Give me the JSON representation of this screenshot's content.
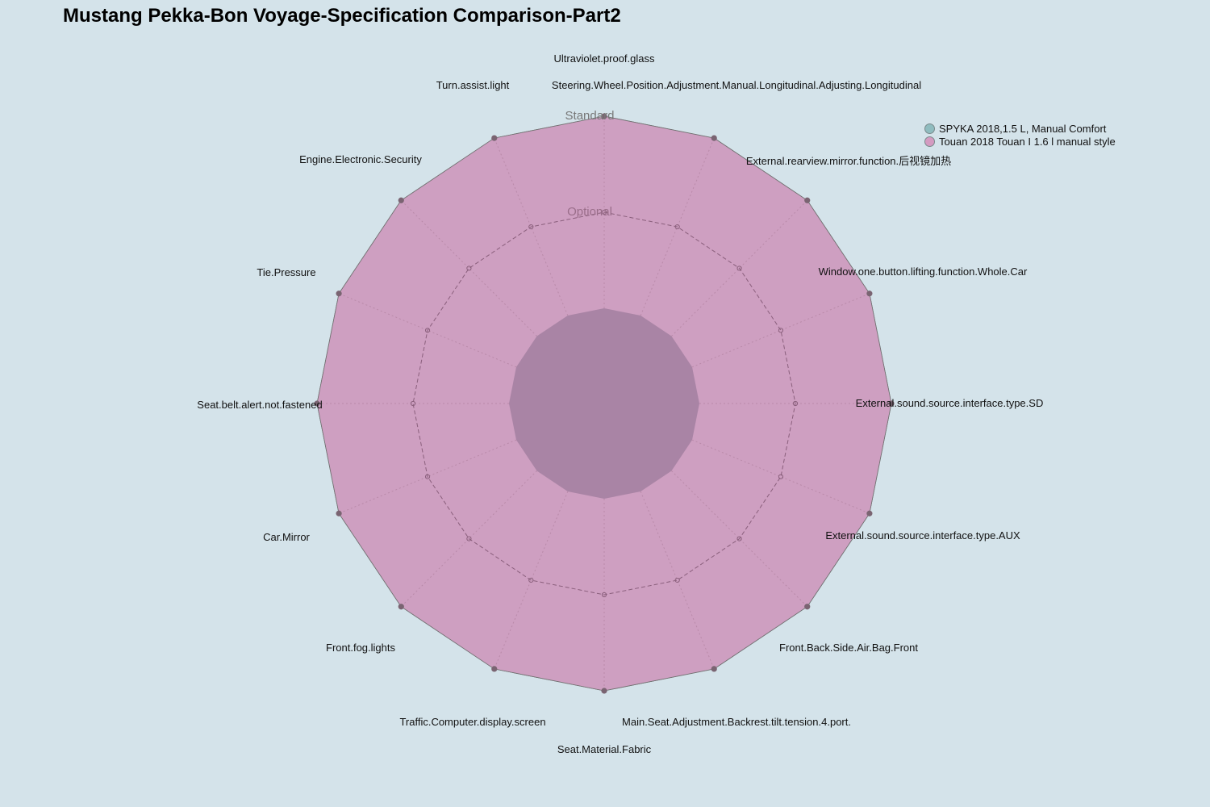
{
  "chart_data": {
    "type": "radar",
    "title": "Mustang Pekka-Bon Voyage-Specification Comparison-Part2",
    "levels": [
      "",
      "Optional",
      "Standard"
    ],
    "axes": [
      "Ultraviolet.proof.glass",
      "Steering.Wheel.Position.Adjustment.Manual.Longitudinal.Adjusting.Longitudinal",
      "External.rearview.mirror.function.后视镜加热",
      "Window.one.button.lifting.function.Whole.Car",
      "External.sound.source.interface.type.SD",
      "External.sound.source.interface.type.AUX",
      "Front.Back.Side.Air.Bag.Front",
      "Main.Seat.Adjustment.Backrest.tilt.tension.4.port.",
      "Seat.Material.Fabric",
      "Traffic.Computer.display.screen",
      "Front.fog.lights",
      "Car.Mirror",
      "Seat.belt.alert.not.fastened",
      "Tie.Pressure",
      "Engine.Electronic.Security",
      "Turn.assist.light"
    ],
    "series": [
      {
        "name": "SPYKA 2018,1.5 L, Manual Comfort",
        "color": "#8fbcbf",
        "values": [
          2,
          2,
          2,
          2,
          2,
          2,
          2,
          2,
          2,
          2,
          2,
          2,
          2,
          2,
          2,
          2
        ]
      },
      {
        "name": "Touan 2018 Touan I 1.6 l manual style",
        "color": "#d49bc1",
        "values": [
          2,
          2,
          2,
          2,
          2,
          2,
          2,
          2,
          2,
          2,
          2,
          2,
          2,
          2,
          2,
          2
        ]
      }
    ],
    "legend_position": "top-right",
    "background": "#d4e3ea",
    "center_fill": "#a984a5",
    "point_color": "#7a6472"
  }
}
